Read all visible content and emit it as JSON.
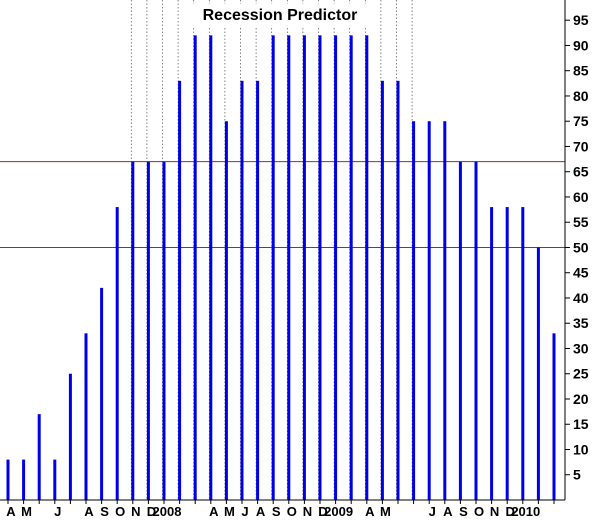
{
  "chart_data": {
    "type": "bar",
    "title": "Recession Predictor",
    "xlabel": "",
    "ylabel": "",
    "ylim": [
      0,
      99
    ],
    "y_ticks": [
      5,
      10,
      15,
      20,
      25,
      30,
      35,
      40,
      45,
      50,
      55,
      60,
      65,
      70,
      75,
      80,
      85,
      90,
      95
    ],
    "y_axis_side": "right",
    "reference_lines": [
      50,
      67
    ],
    "reference_line_color": "#b22222",
    "bar_color": "#0000e6",
    "x_tick_labels": [
      "A",
      "M",
      "J",
      "A",
      "S",
      "O",
      "N",
      "D",
      "2008",
      "A",
      "M",
      "J",
      "A",
      "S",
      "O",
      "N",
      "D",
      "2009",
      "A",
      "M",
      "J",
      "A",
      "S",
      "O",
      "N",
      "D",
      "2010"
    ],
    "x_tick_label_bars": [
      0,
      1,
      3,
      5,
      6,
      7,
      8,
      9,
      10,
      13,
      14,
      15,
      16,
      17,
      18,
      19,
      20,
      21,
      23,
      24,
      27,
      28,
      29,
      30,
      31,
      32,
      33
    ],
    "dotted_gridline_bars": [
      8,
      9,
      10,
      11,
      12,
      13,
      14,
      15,
      16,
      17,
      18,
      19,
      20,
      21,
      22,
      23,
      24,
      25,
      26
    ],
    "values": [
      8,
      8,
      17,
      8,
      25,
      33,
      42,
      58,
      67,
      67,
      67,
      83,
      92,
      92,
      75,
      83,
      83,
      92,
      92,
      92,
      92,
      92,
      92,
      92,
      83,
      83,
      75,
      75,
      75,
      67,
      67,
      58,
      58,
      58,
      50,
      33
    ]
  }
}
